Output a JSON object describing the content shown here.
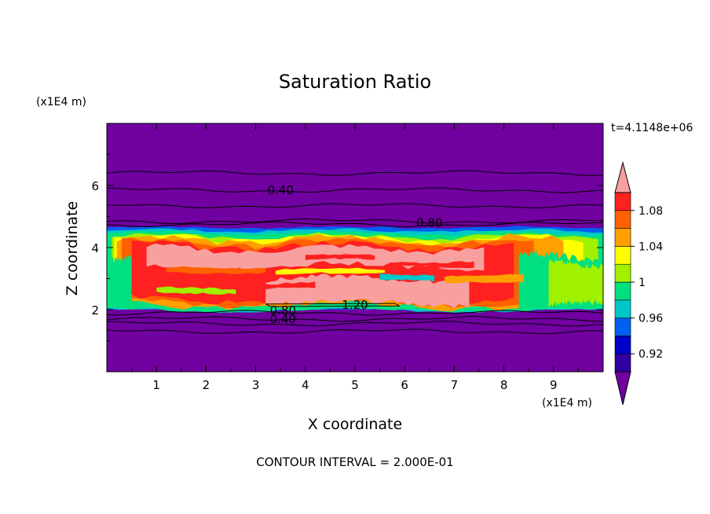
{
  "chart_data": {
    "type": "heatmap",
    "title": "Saturation Ratio",
    "xlabel": "X coordinate",
    "ylabel": "Z coordinate",
    "x_unit_label": "(x1E4 m)",
    "y_unit_label": "(x1E4 m)",
    "time_label": "t=4.1148e+06",
    "footer": "CONTOUR INTERVAL = 2.000E-01",
    "xlim": [
      0,
      10
    ],
    "ylim": [
      0,
      8
    ],
    "x_ticks": [
      1,
      2,
      3,
      4,
      5,
      6,
      7,
      8,
      9
    ],
    "y_ticks": [
      2,
      4,
      6
    ],
    "colorbar": {
      "levels": [
        0.9,
        0.92,
        0.94,
        0.96,
        0.98,
        1.0,
        1.02,
        1.04,
        1.06,
        1.08,
        1.1
      ],
      "tick_labels": [
        "0.92",
        "0.96",
        "1",
        "1.04",
        "1.08"
      ],
      "colors": [
        "#7000a0",
        "#3000a0",
        "#0000c8",
        "#0060f0",
        "#00c8c8",
        "#00e080",
        "#a0f000",
        "#ffff00",
        "#ffa000",
        "#ff6000",
        "#ff2020",
        "#f8a0a0"
      ]
    },
    "contour_labels": [
      {
        "text": "0.40",
        "x": 3.5,
        "z": 5.85
      },
      {
        "text": "0.80",
        "x": 6.5,
        "z": 4.8
      },
      {
        "text": "1.20",
        "x": 5.0,
        "z": 2.15
      },
      {
        "text": "0.80",
        "x": 3.55,
        "z": 1.98
      },
      {
        "text": "0.40",
        "x": 3.55,
        "z": 1.7
      }
    ],
    "contour_lines_z": [
      6.4,
      5.85,
      5.35,
      4.85,
      4.75,
      1.9,
      1.7,
      1.55,
      1.3
    ],
    "field_bands": [
      {
        "z_bottom": 0.0,
        "z_top": 2.0,
        "level": "<0.90"
      },
      {
        "z_bottom": 2.0,
        "z_top": 2.8,
        "level": "0.98-1.08 mixed"
      },
      {
        "z_bottom": 2.8,
        "z_top": 4.2,
        "level": ">1.08 core"
      },
      {
        "z_bottom": 4.2,
        "z_top": 4.6,
        "level": "0.90-1.06 transition"
      },
      {
        "z_bottom": 4.6,
        "z_top": 8.0,
        "level": "<0.90"
      }
    ]
  }
}
